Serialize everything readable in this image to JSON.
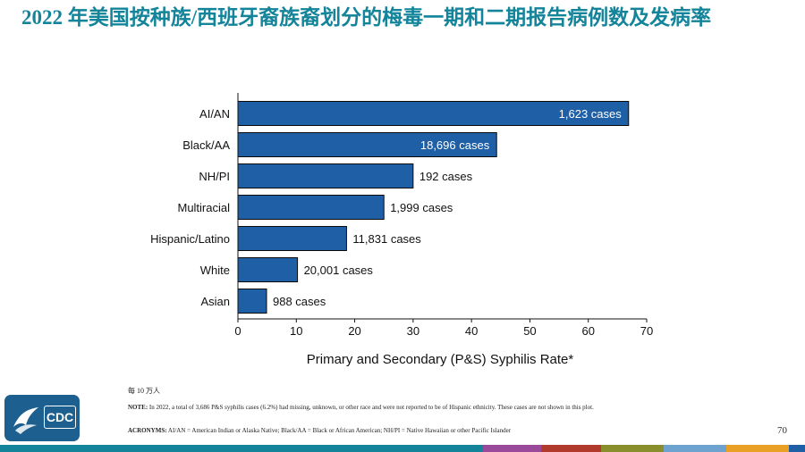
{
  "slide": {
    "title": "2022 年美国按种族/西班牙裔族裔划分的梅毒一期和二期报告病例数及发病率",
    "page_number": "70"
  },
  "chart_data": {
    "type": "bar",
    "orientation": "horizontal",
    "categories": [
      "AI/AN",
      "Black/AA",
      "NH/PI",
      "Multiracial",
      "Hispanic/Latino",
      "White",
      "Asian"
    ],
    "values": [
      66.9,
      44.3,
      30.0,
      25.0,
      18.6,
      10.2,
      4.9
    ],
    "data_labels": [
      "1,623 cases",
      "18,696 cases",
      "192 cases",
      "1,999 cases",
      "11,831 cases",
      "20,001 cases",
      "988 cases"
    ],
    "xlabel": "Primary and Secondary (P&S) Syphilis Rate*",
    "xlim": [
      0,
      70
    ],
    "xticks": [
      0,
      10,
      20,
      30,
      40,
      50,
      60,
      70
    ],
    "bar_color": "#1f5fa6",
    "grid": false
  },
  "footnotes": {
    "unit": "每 10 万人",
    "note_label": "NOTE:",
    "note_text": " In 2022, a total of 3,686 P&S syphilis cases (6.2%) had missing, unknown, or other race and were not reported to be of Hispanic ethnicity. These cases are not shown in this plot.",
    "acronyms_label": "ACRONYMS:",
    "acronyms_text": " AI/AN = American Indian or Alaska Native; Black/AA = Black or African American; NH/PI = Native Hawaiian or other Pacific Islander"
  },
  "logo": {
    "text": "CDC"
  },
  "strip_colors": [
    "#13849a",
    "#13849a",
    "#9b4a9b",
    "#b23a2c",
    "#8a8f2e",
    "#6fa3cf",
    "#e9a024",
    "#1f5fa6"
  ]
}
